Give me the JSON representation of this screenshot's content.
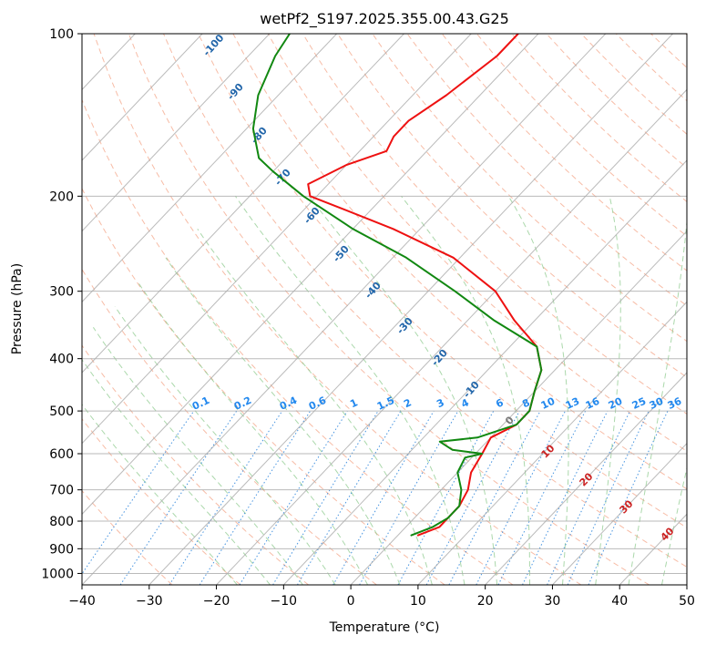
{
  "colors": {
    "temperature": "#ee1111",
    "dewpoint": "#118811",
    "isobar": "#aaaaaa",
    "isotherm": "#aaaaaa",
    "dry_adiabat": "#f4a080",
    "moist_adiabat": "#88c888",
    "mixing_ratio": "#3388dd",
    "dry_label": "#2266aa",
    "mixing_label": "#2288ee",
    "moist_label": "#cc2222",
    "frame": "#000000"
  },
  "chart_data": {
    "type": "line",
    "title": "wetPf2_S197.2025.355.00.43.G25",
    "xlabel": "Temperature (°C)",
    "ylabel": "Pressure (hPa)",
    "xlim": [
      -40,
      50
    ],
    "ylim": [
      1050,
      100
    ],
    "y_scale": "log",
    "skew": true,
    "grid": true,
    "x_ticks": [
      -40,
      -30,
      -20,
      -10,
      0,
      10,
      20,
      30,
      40,
      50
    ],
    "y_ticks": [
      100,
      200,
      300,
      400,
      500,
      600,
      700,
      800,
      900,
      1000
    ],
    "series": [
      {
        "key": "temperature",
        "points": [
          [
            850,
            3
          ],
          [
            820,
            5
          ],
          [
            790,
            5
          ],
          [
            750,
            5
          ],
          [
            700,
            4
          ],
          [
            650,
            2
          ],
          [
            600,
            1
          ],
          [
            560,
            0
          ],
          [
            530,
            2
          ],
          [
            500,
            2
          ],
          [
            460,
            0
          ],
          [
            420,
            -2
          ],
          [
            380,
            -6
          ],
          [
            340,
            -13
          ],
          [
            300,
            -20
          ],
          [
            260,
            -31
          ],
          [
            230,
            -44
          ],
          [
            210,
            -55
          ],
          [
            200,
            -61
          ],
          [
            190,
            -63
          ],
          [
            175,
            -60
          ],
          [
            165,
            -56
          ],
          [
            155,
            -57
          ],
          [
            145,
            -57
          ],
          [
            130,
            -55
          ],
          [
            110,
            -53
          ],
          [
            100,
            -53
          ]
        ]
      },
      {
        "key": "dewpoint",
        "points": [
          [
            850,
            2
          ],
          [
            820,
            4
          ],
          [
            790,
            5
          ],
          [
            750,
            5
          ],
          [
            700,
            3
          ],
          [
            650,
            0
          ],
          [
            610,
            -1
          ],
          [
            600,
            1
          ],
          [
            590,
            -4
          ],
          [
            570,
            -7
          ],
          [
            560,
            -2
          ],
          [
            530,
            2
          ],
          [
            500,
            2
          ],
          [
            460,
            0
          ],
          [
            420,
            -2
          ],
          [
            380,
            -6
          ],
          [
            340,
            -16
          ],
          [
            300,
            -26
          ],
          [
            260,
            -38
          ],
          [
            230,
            -50
          ],
          [
            200,
            -62
          ],
          [
            180,
            -70
          ],
          [
            170,
            -74
          ],
          [
            150,
            -79
          ],
          [
            130,
            -83
          ],
          [
            110,
            -86
          ],
          [
            100,
            -87
          ]
        ]
      }
    ],
    "dry_adiabat_labels": [
      "-100",
      "-90",
      "-80",
      "-70",
      "-60",
      "-50",
      "-40",
      "-30",
      "-20",
      "-10",
      "0"
    ],
    "mixing_ratio_labels": [
      "0.1",
      "0.2",
      "0.4",
      "0.6",
      "1",
      "1.5",
      "2",
      "3",
      "4",
      "6",
      "8",
      "10",
      "13",
      "16",
      "20",
      "25",
      "30",
      "36"
    ],
    "moist_adiabat_labels": [
      "10",
      "20",
      "30",
      "40"
    ]
  }
}
